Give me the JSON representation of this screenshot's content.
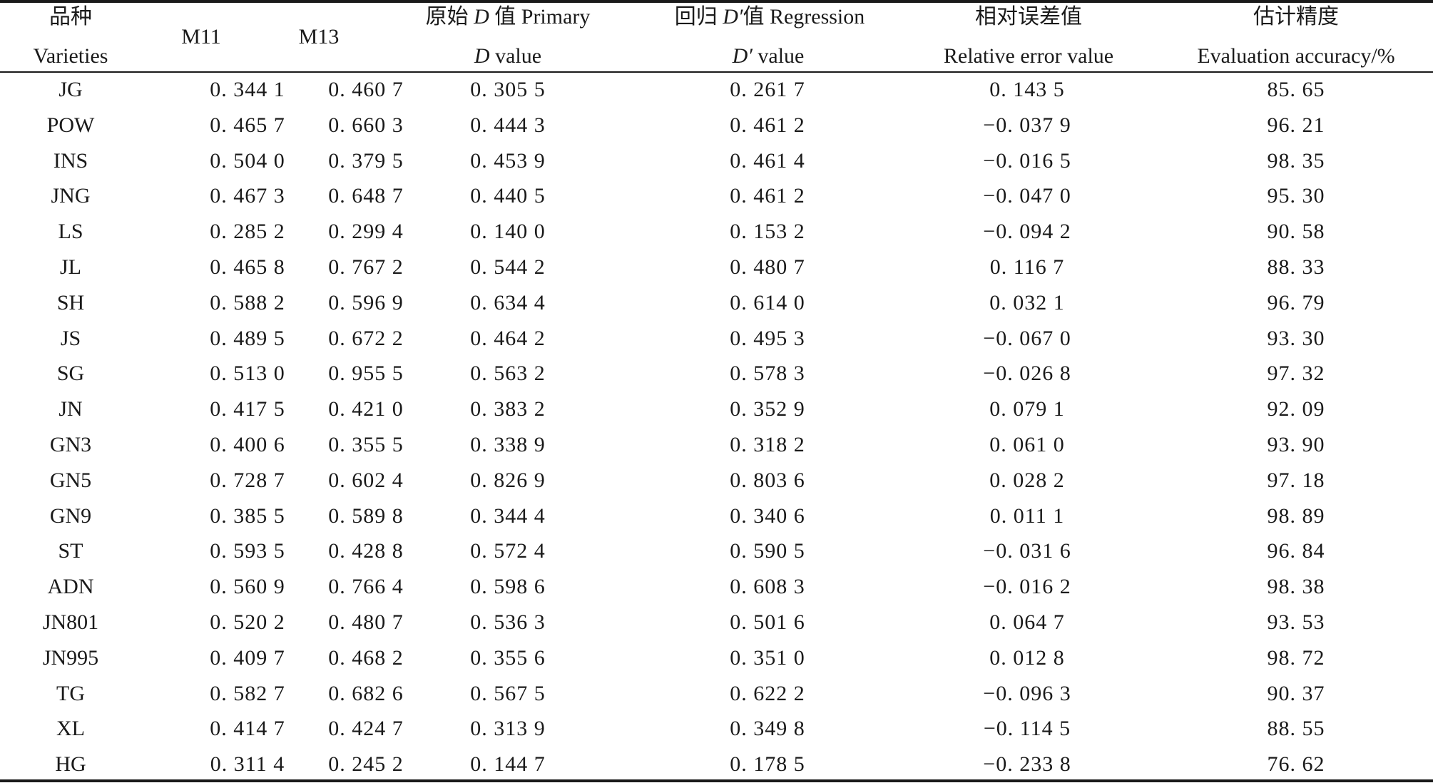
{
  "header": {
    "varieties_cn": "品种",
    "varieties_en": "Varieties",
    "m11": "M11",
    "m13": "M13",
    "primary_cn": "原始",
    "primary_d": "D",
    "primary_rest": " 值 Primary",
    "primary_line2_d": "D",
    "primary_line2_rest": " value",
    "regression_cn": "回归",
    "regression_d": "D′",
    "regression_rest": "值 Regression",
    "regression_line2_d": "D′",
    "regression_line2_rest": " value",
    "relerr_cn": "相对误差值",
    "relerr_en": "Relative error value",
    "accuracy_cn": "估计精度",
    "accuracy_en": "Evaluation accuracy/%"
  },
  "rows": [
    {
      "variety": "JG",
      "m11": "0. 344 1",
      "m13": "0. 460 7",
      "primary": "0. 305 5",
      "regression": "0. 261 7",
      "relerr": "0. 143 5",
      "accuracy": "85. 65"
    },
    {
      "variety": "POW",
      "m11": "0. 465 7",
      "m13": "0. 660 3",
      "primary": "0. 444 3",
      "regression": "0. 461 2",
      "relerr": "−0. 037 9",
      "accuracy": "96. 21"
    },
    {
      "variety": "INS",
      "m11": "0. 504 0",
      "m13": "0. 379 5",
      "primary": "0. 453 9",
      "regression": "0. 461 4",
      "relerr": "−0. 016 5",
      "accuracy": "98. 35"
    },
    {
      "variety": "JNG",
      "m11": "0. 467 3",
      "m13": "0. 648 7",
      "primary": "0. 440 5",
      "regression": "0. 461 2",
      "relerr": "−0. 047 0",
      "accuracy": "95. 30"
    },
    {
      "variety": "LS",
      "m11": "0. 285 2",
      "m13": "0. 299 4",
      "primary": "0. 140 0",
      "regression": "0. 153 2",
      "relerr": "−0. 094 2",
      "accuracy": "90. 58"
    },
    {
      "variety": "JL",
      "m11": "0. 465 8",
      "m13": "0. 767 2",
      "primary": "0. 544 2",
      "regression": "0. 480 7",
      "relerr": "0. 116 7",
      "accuracy": "88. 33"
    },
    {
      "variety": "SH",
      "m11": "0. 588 2",
      "m13": "0. 596 9",
      "primary": "0. 634 4",
      "regression": "0. 614 0",
      "relerr": "0. 032 1",
      "accuracy": "96. 79"
    },
    {
      "variety": "JS",
      "m11": "0. 489 5",
      "m13": "0. 672 2",
      "primary": "0. 464 2",
      "regression": "0. 495 3",
      "relerr": "−0. 067 0",
      "accuracy": "93. 30"
    },
    {
      "variety": "SG",
      "m11": "0. 513 0",
      "m13": "0. 955 5",
      "primary": "0. 563 2",
      "regression": "0. 578 3",
      "relerr": "−0. 026 8",
      "accuracy": "97. 32"
    },
    {
      "variety": "JN",
      "m11": "0. 417 5",
      "m13": "0. 421 0",
      "primary": "0. 383 2",
      "regression": "0. 352 9",
      "relerr": "0. 079 1",
      "accuracy": "92. 09"
    },
    {
      "variety": "GN3",
      "m11": "0. 400 6",
      "m13": "0. 355 5",
      "primary": "0. 338 9",
      "regression": "0. 318 2",
      "relerr": "0. 061 0",
      "accuracy": "93. 90"
    },
    {
      "variety": "GN5",
      "m11": "0. 728 7",
      "m13": "0. 602 4",
      "primary": "0. 826 9",
      "regression": "0. 803 6",
      "relerr": "0. 028 2",
      "accuracy": "97. 18"
    },
    {
      "variety": "GN9",
      "m11": "0. 385 5",
      "m13": "0. 589 8",
      "primary": "0. 344 4",
      "regression": "0. 340 6",
      "relerr": "0. 011 1",
      "accuracy": "98. 89"
    },
    {
      "variety": "ST",
      "m11": "0. 593 5",
      "m13": "0. 428 8",
      "primary": "0. 572 4",
      "regression": "0. 590 5",
      "relerr": "−0. 031 6",
      "accuracy": "96. 84"
    },
    {
      "variety": "ADN",
      "m11": "0. 560 9",
      "m13": "0. 766 4",
      "primary": "0. 598 6",
      "regression": "0. 608 3",
      "relerr": "−0. 016 2",
      "accuracy": "98. 38"
    },
    {
      "variety": "JN801",
      "m11": "0. 520 2",
      "m13": "0. 480 7",
      "primary": "0. 536 3",
      "regression": "0. 501 6",
      "relerr": "0. 064 7",
      "accuracy": "93. 53"
    },
    {
      "variety": "JN995",
      "m11": "0. 409 7",
      "m13": "0. 468 2",
      "primary": "0. 355 6",
      "regression": "0. 351 0",
      "relerr": "0. 012 8",
      "accuracy": "98. 72"
    },
    {
      "variety": "TG",
      "m11": "0. 582 7",
      "m13": "0. 682 6",
      "primary": "0. 567 5",
      "regression": "0. 622 2",
      "relerr": "−0. 096 3",
      "accuracy": "90. 37"
    },
    {
      "variety": "XL",
      "m11": "0. 414 7",
      "m13": "0. 424 7",
      "primary": "0. 313 9",
      "regression": "0. 349 8",
      "relerr": "−0. 114 5",
      "accuracy": "88. 55"
    },
    {
      "variety": "HG",
      "m11": "0. 311 4",
      "m13": "0. 245 2",
      "primary": "0. 144 7",
      "regression": "0. 178 5",
      "relerr": "−0. 233 8",
      "accuracy": "76. 62"
    }
  ]
}
